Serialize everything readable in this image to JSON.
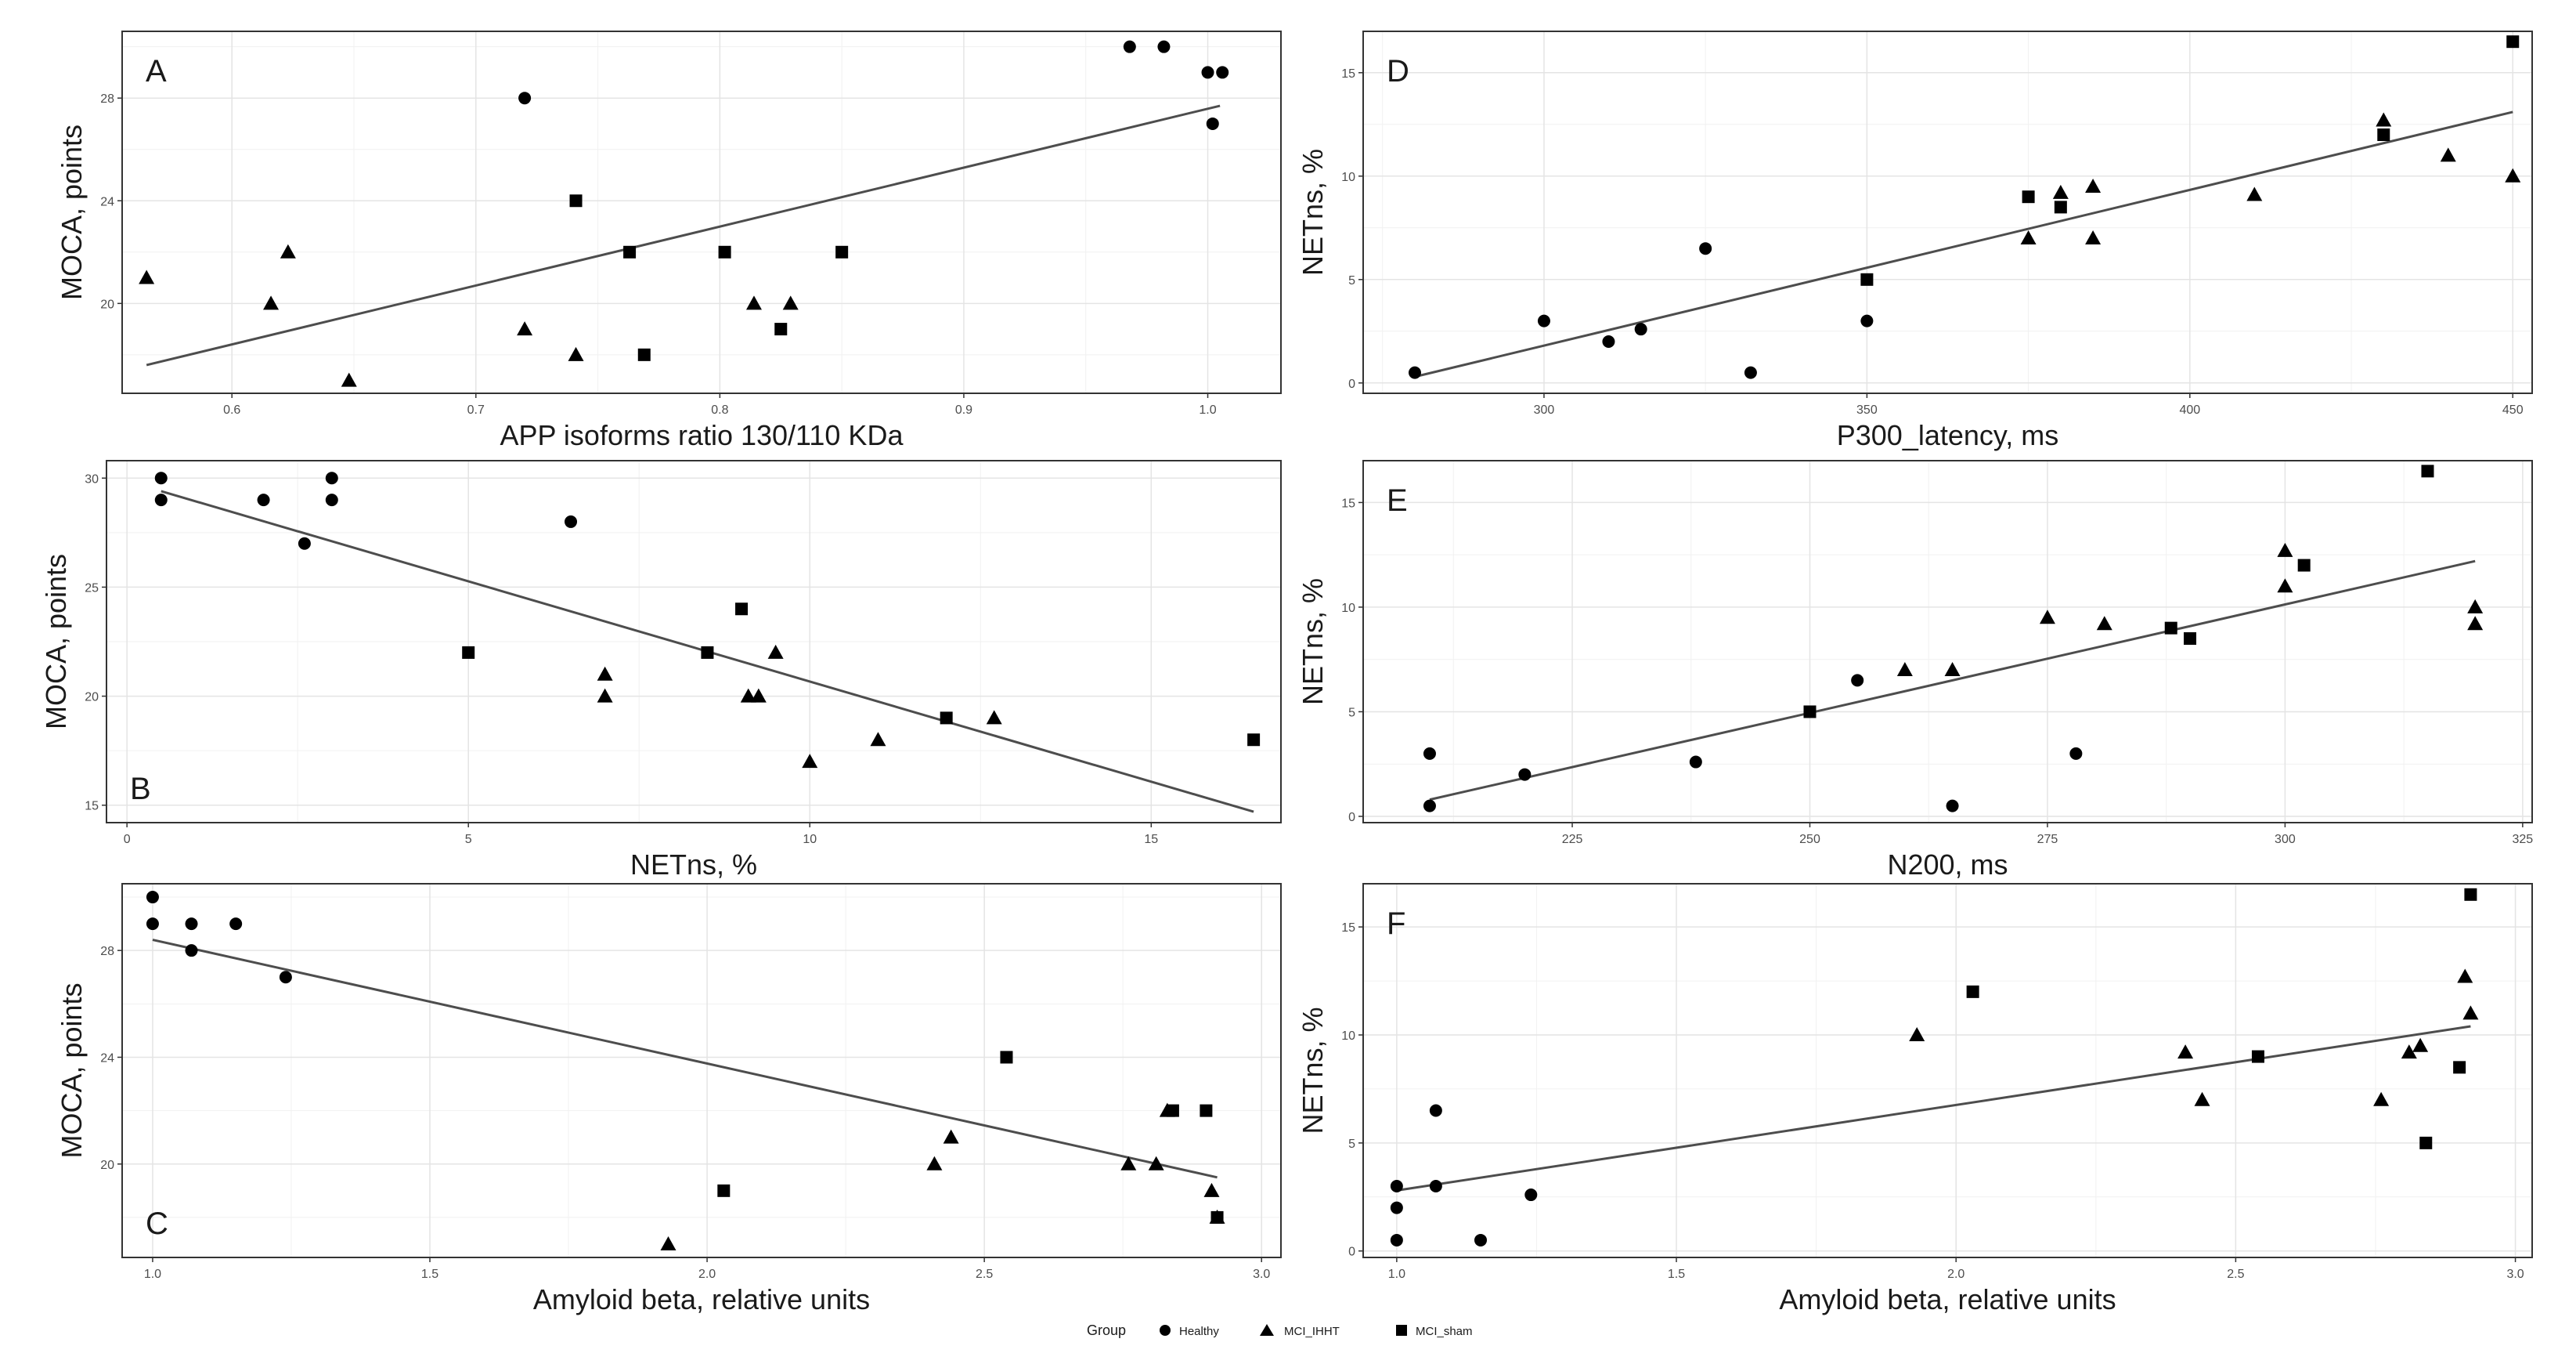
{
  "colors": {
    "marker": "#000000",
    "fit_line": "#4d4d4d",
    "grid_major": "#e4e4e4",
    "grid_minor": "#f1f1f1",
    "frame": "#333333"
  },
  "legend": {
    "title": "Group",
    "entries": [
      {
        "label": "Healthy",
        "shape": "circle"
      },
      {
        "label": "MCI_IHHT",
        "shape": "triangle"
      },
      {
        "label": "MCI_sham",
        "shape": "square"
      }
    ],
    "placement": "bottom-center"
  },
  "chart_data": [
    {
      "panel": "A",
      "type": "scatter",
      "letter_position": "top-left",
      "xlabel": "APP isoforms ratio 130/110 KDa",
      "ylabel": "MOCA, points",
      "xlim": [
        0.555,
        1.03
      ],
      "ylim": [
        16.5,
        30.6
      ],
      "xticks": [
        0.6,
        0.7,
        0.8,
        0.9,
        1.0
      ],
      "xtick_labels": [
        "0.6",
        "0.7",
        "0.8",
        "0.9",
        "1.0"
      ],
      "yticks": [
        20,
        24,
        28
      ],
      "ytick_labels": [
        "20",
        "24",
        "28"
      ],
      "fit_line": {
        "x": [
          0.565,
          1.005
        ],
        "y": [
          17.6,
          27.7
        ]
      },
      "series": [
        {
          "name": "Healthy",
          "shape": "circle",
          "points": [
            [
              0.72,
              28
            ],
            [
              0.968,
              30
            ],
            [
              0.982,
              30
            ],
            [
              1.0,
              29
            ],
            [
              1.006,
              29
            ],
            [
              1.002,
              27
            ]
          ]
        },
        {
          "name": "MCI_IHHT",
          "shape": "triangle",
          "points": [
            [
              0.565,
              21
            ],
            [
              0.616,
              20
            ],
            [
              0.623,
              22
            ],
            [
              0.648,
              17
            ],
            [
              0.72,
              19
            ],
            [
              0.741,
              18
            ],
            [
              0.814,
              20
            ],
            [
              0.829,
              20
            ]
          ]
        },
        {
          "name": "MCI_sham",
          "shape": "square",
          "points": [
            [
              0.741,
              24
            ],
            [
              0.763,
              22
            ],
            [
              0.769,
              18
            ],
            [
              0.802,
              22
            ],
            [
              0.825,
              19
            ],
            [
              0.85,
              22
            ]
          ]
        }
      ]
    },
    {
      "panel": "B",
      "type": "scatter",
      "letter_position": "bottom-left",
      "xlabel": "NETns, %",
      "ylabel": "MOCA, points",
      "xlim": [
        -0.3,
        16.9
      ],
      "ylim": [
        14.2,
        30.8
      ],
      "xticks": [
        0,
        5,
        10,
        15
      ],
      "xtick_labels": [
        "0",
        "5",
        "10",
        "15"
      ],
      "yticks": [
        15,
        20,
        25,
        30
      ],
      "ytick_labels": [
        "15",
        "20",
        "25",
        "30"
      ],
      "fit_line": {
        "x": [
          0.5,
          16.5
        ],
        "y": [
          29.4,
          14.7
        ]
      },
      "series": [
        {
          "name": "Healthy",
          "shape": "circle",
          "points": [
            [
              0.5,
              30
            ],
            [
              0.5,
              29
            ],
            [
              2.0,
              29
            ],
            [
              2.6,
              27
            ],
            [
              3.0,
              30
            ],
            [
              3.0,
              29
            ],
            [
              6.5,
              28
            ]
          ]
        },
        {
          "name": "MCI_IHHT",
          "shape": "triangle",
          "points": [
            [
              7.0,
              21
            ],
            [
              7.0,
              20
            ],
            [
              9.1,
              20
            ],
            [
              9.25,
              20
            ],
            [
              9.5,
              22
            ],
            [
              10.0,
              17
            ],
            [
              11.0,
              18
            ],
            [
              12.7,
              19
            ]
          ]
        },
        {
          "name": "MCI_sham",
          "shape": "square",
          "points": [
            [
              5.0,
              22
            ],
            [
              8.5,
              22
            ],
            [
              9.0,
              24
            ],
            [
              12.0,
              19
            ],
            [
              16.5,
              18
            ]
          ]
        }
      ]
    },
    {
      "panel": "C",
      "type": "scatter",
      "letter_position": "bottom-left",
      "xlabel": "Amyloid beta, relative units",
      "ylabel": "MOCA, points",
      "xlim": [
        0.945,
        3.035
      ],
      "ylim": [
        16.5,
        30.5
      ],
      "xticks": [
        1.0,
        1.5,
        2.0,
        2.5,
        3.0
      ],
      "xtick_labels": [
        "1.0",
        "1.5",
        "2.0",
        "2.5",
        "3.0"
      ],
      "yticks": [
        20,
        24,
        28
      ],
      "ytick_labels": [
        "20",
        "24",
        "28"
      ],
      "fit_line": {
        "x": [
          1.0,
          2.92
        ],
        "y": [
          28.4,
          19.5
        ]
      },
      "series": [
        {
          "name": "Healthy",
          "shape": "circle",
          "points": [
            [
              1.0,
              30
            ],
            [
              1.0,
              29
            ],
            [
              1.07,
              29
            ],
            [
              1.07,
              28
            ],
            [
              1.15,
              29
            ],
            [
              1.24,
              27
            ]
          ]
        },
        {
          "name": "MCI_IHHT",
          "shape": "triangle",
          "points": [
            [
              1.93,
              17
            ],
            [
              2.41,
              20
            ],
            [
              2.44,
              21
            ],
            [
              2.76,
              20
            ],
            [
              2.81,
              20
            ],
            [
              2.83,
              22
            ],
            [
              2.91,
              19
            ],
            [
              2.92,
              18
            ]
          ]
        },
        {
          "name": "MCI_sham",
          "shape": "square",
          "points": [
            [
              2.03,
              19
            ],
            [
              2.54,
              24
            ],
            [
              2.84,
              22
            ],
            [
              2.9,
              22
            ],
            [
              2.92,
              18
            ]
          ]
        }
      ]
    },
    {
      "panel": "D",
      "type": "scatter",
      "letter_position": "top-left",
      "xlabel": "P300_latency, ms",
      "ylabel": "NETns, %",
      "xlim": [
        272,
        453
      ],
      "ylim": [
        -0.5,
        17.0
      ],
      "xticks": [
        300,
        350,
        400,
        450
      ],
      "xtick_labels": [
        "300",
        "350",
        "400",
        "450"
      ],
      "yticks": [
        0,
        5,
        10,
        15
      ],
      "ytick_labels": [
        "0",
        "5",
        "10",
        "15"
      ],
      "fit_line": {
        "x": [
          280,
          450
        ],
        "y": [
          0.3,
          13.1
        ]
      },
      "series": [
        {
          "name": "Healthy",
          "shape": "circle",
          "points": [
            [
              280,
              0.5
            ],
            [
              300,
              3
            ],
            [
              310,
              2
            ],
            [
              315,
              2.6
            ],
            [
              325,
              6.5
            ],
            [
              332,
              0.5
            ],
            [
              350,
              3
            ]
          ]
        },
        {
          "name": "MCI_IHHT",
          "shape": "triangle",
          "points": [
            [
              375,
              7
            ],
            [
              380,
              9.2
            ],
            [
              385,
              9.5
            ],
            [
              385,
              7
            ],
            [
              410,
              9.1
            ],
            [
              430,
              12.7
            ],
            [
              440,
              11
            ],
            [
              450,
              10
            ]
          ]
        },
        {
          "name": "MCI_sham",
          "shape": "square",
          "points": [
            [
              350,
              5
            ],
            [
              375,
              9
            ],
            [
              380,
              8.5
            ],
            [
              430,
              12
            ],
            [
              450,
              16.5
            ]
          ]
        }
      ]
    },
    {
      "panel": "E",
      "type": "scatter",
      "letter_position": "top-left",
      "xlabel": "N200, ms",
      "ylabel": "NETns, %",
      "xlim": [
        203,
        326
      ],
      "ylim": [
        -0.3,
        17.0
      ],
      "xticks": [
        225,
        250,
        275,
        300,
        325
      ],
      "xtick_labels": [
        "225",
        "250",
        "275",
        "300",
        "325"
      ],
      "yticks": [
        0,
        5,
        10,
        15
      ],
      "ytick_labels": [
        "0",
        "5",
        "10",
        "15"
      ],
      "fit_line": {
        "x": [
          210,
          320
        ],
        "y": [
          0.8,
          12.2
        ]
      },
      "series": [
        {
          "name": "Healthy",
          "shape": "circle",
          "points": [
            [
              210,
              3
            ],
            [
              210,
              0.5
            ],
            [
              220,
              2
            ],
            [
              238,
              2.6
            ],
            [
              255,
              6.5
            ],
            [
              265,
              0.5
            ],
            [
              278,
              3
            ]
          ]
        },
        {
          "name": "MCI_IHHT",
          "shape": "triangle",
          "points": [
            [
              260,
              7
            ],
            [
              265,
              7
            ],
            [
              275,
              9.5
            ],
            [
              281,
              9.2
            ],
            [
              300,
              12.7
            ],
            [
              300,
              11
            ],
            [
              320,
              10
            ],
            [
              320,
              9.2
            ]
          ]
        },
        {
          "name": "MCI_sham",
          "shape": "square",
          "points": [
            [
              250,
              5
            ],
            [
              288,
              9
            ],
            [
              290,
              8.5
            ],
            [
              302,
              12
            ],
            [
              315,
              16.5
            ]
          ]
        }
      ]
    },
    {
      "panel": "F",
      "type": "scatter",
      "letter_position": "top-left",
      "xlabel": "Amyloid beta, relative units",
      "ylabel": "NETns, %",
      "xlim": [
        0.94,
        3.03
      ],
      "ylim": [
        -0.3,
        17.0
      ],
      "xticks": [
        1.0,
        1.5,
        2.0,
        2.5,
        3.0
      ],
      "xtick_labels": [
        "1.0",
        "1.5",
        "2.0",
        "2.5",
        "3.0"
      ],
      "yticks": [
        0,
        5,
        10,
        15
      ],
      "ytick_labels": [
        "0",
        "5",
        "10",
        "15"
      ],
      "fit_line": {
        "x": [
          1.0,
          2.92
        ],
        "y": [
          2.8,
          10.4
        ]
      },
      "series": [
        {
          "name": "Healthy",
          "shape": "circle",
          "points": [
            [
              1.0,
              3
            ],
            [
              1.0,
              2
            ],
            [
              1.0,
              0.5
            ],
            [
              1.07,
              6.5
            ],
            [
              1.07,
              3
            ],
            [
              1.15,
              0.5
            ],
            [
              1.24,
              2.6
            ]
          ]
        },
        {
          "name": "MCI_IHHT",
          "shape": "triangle",
          "points": [
            [
              1.93,
              10
            ],
            [
              2.41,
              9.2
            ],
            [
              2.44,
              7
            ],
            [
              2.76,
              7
            ],
            [
              2.81,
              9.2
            ],
            [
              2.83,
              9.5
            ],
            [
              2.91,
              12.7
            ],
            [
              2.92,
              11
            ]
          ]
        },
        {
          "name": "MCI_sham",
          "shape": "square",
          "points": [
            [
              2.03,
              12
            ],
            [
              2.54,
              9
            ],
            [
              2.84,
              5
            ],
            [
              2.9,
              8.5
            ],
            [
              2.92,
              16.5
            ]
          ]
        }
      ]
    }
  ]
}
